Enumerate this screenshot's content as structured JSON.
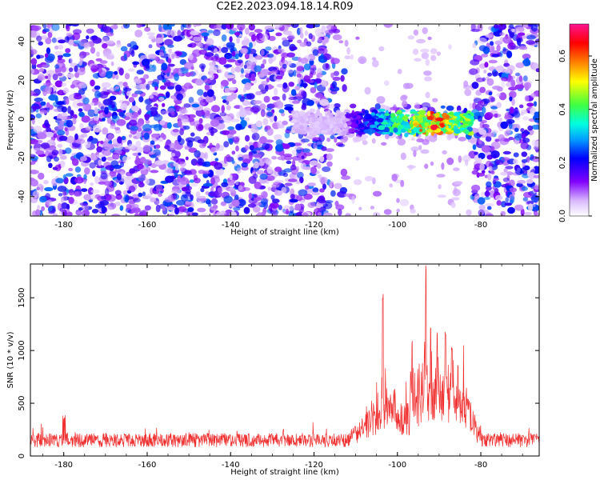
{
  "title": "C2E2.2023.094.18.14.R09",
  "colors": {
    "snr_line": "#f03030",
    "spectrogram_palette": [
      "#ffffff",
      "#e6ccff",
      "#b070ff",
      "#6a00ff",
      "#0040ff",
      "#00e0ff",
      "#40ff40",
      "#ffff00",
      "#ff0000",
      "#ff1493"
    ]
  },
  "chart_data": [
    {
      "type": "heatmap",
      "name": "spectrogram",
      "xlabel": "Height of straight line (km)",
      "ylabel": "Frequency (Hz)",
      "xlim": [
        -188,
        -66
      ],
      "ylim": [
        -50,
        49
      ],
      "xticks": [
        -180,
        -160,
        -140,
        -120,
        -100,
        -80
      ],
      "yticks": [
        -40,
        -20,
        0,
        20,
        40
      ],
      "colorbar": {
        "label": "Normalized spectral amplitude",
        "range": [
          0,
          0.72
        ],
        "ticks": [
          "0.0",
          "0.2",
          "0.4",
          "0.6"
        ]
      },
      "features": {
        "signal_band": {
          "x_range": [
            -125,
            -82
          ],
          "freq_center_hz": -2,
          "freq_halfwidth_hz": 6,
          "peak_amplitude": 0.7,
          "peak_x": -91
        },
        "low_density_gap": {
          "x_range": [
            -112,
            -82
          ],
          "description_visible": false
        },
        "noise_level": 0.12
      }
    },
    {
      "type": "line",
      "name": "snr",
      "xlabel": "Height of straight line (km)",
      "ylabel": "SNR (10 * v/v)",
      "xlim": [
        -188,
        -66
      ],
      "ylim": [
        0,
        1820
      ],
      "xticks": [
        -180,
        -160,
        -140,
        -120,
        -100,
        -80
      ],
      "yticks": [
        0,
        500,
        1000,
        1500
      ],
      "noise_floor": 150,
      "peaks": [
        {
          "x": -103.5,
          "y": 1540
        },
        {
          "x": -93.2,
          "y": 1820
        },
        {
          "x": -96.5,
          "y": 1100
        },
        {
          "x": -92.0,
          "y": 1260
        },
        {
          "x": -90.5,
          "y": 1180
        },
        {
          "x": -88.5,
          "y": 1210
        },
        {
          "x": -87.0,
          "y": 1050
        },
        {
          "x": -85.5,
          "y": 900
        }
      ]
    }
  ]
}
